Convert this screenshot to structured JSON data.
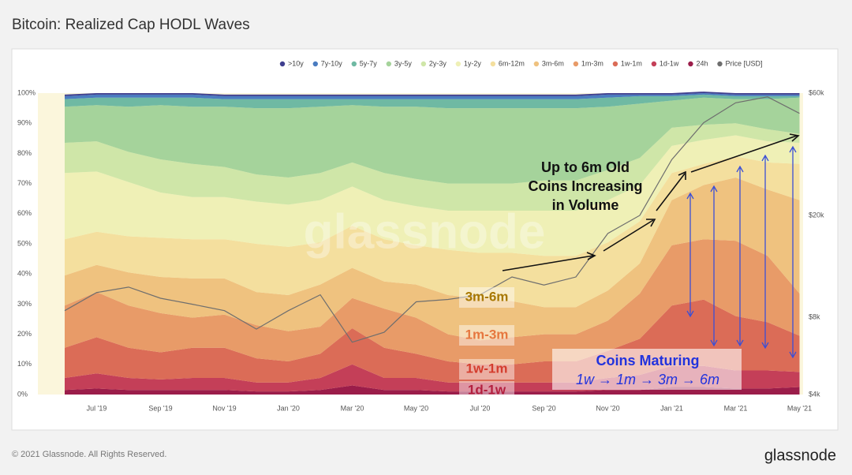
{
  "chart_data": {
    "type": "stacked-area",
    "title": "Bitcoin: Realized Cap HODL Waves",
    "watermark": "glassnode",
    "footer": "© 2021 Glassnode. All Rights Reserved.",
    "logo": "glassnode",
    "categories": [
      null,
      "Jul '19",
      null,
      "Sep '19",
      null,
      "Nov '19",
      null,
      "Jan '20",
      null,
      "Mar '20",
      null,
      "May '20",
      null,
      "Jul '20",
      null,
      "Sep '20",
      null,
      "Nov '20",
      null,
      "Jan '21",
      null,
      "Mar '21",
      null,
      "May '21"
    ],
    "ylim": [
      0,
      100
    ],
    "yticks": [
      {
        "value": 0,
        "label": "0%"
      },
      {
        "value": 10,
        "label": "10%"
      },
      {
        "value": 20,
        "label": "20%"
      },
      {
        "value": 30,
        "label": "30%"
      },
      {
        "value": 40,
        "label": "40%"
      },
      {
        "value": 50,
        "label": "50%"
      },
      {
        "value": 60,
        "label": "60%"
      },
      {
        "value": 70,
        "label": "70%"
      },
      {
        "value": 80,
        "label": "80%"
      },
      {
        "value": 90,
        "label": "90%"
      },
      {
        "value": 100,
        "label": "100%"
      }
    ],
    "y2lim": [
      4000,
      60000
    ],
    "y2ticks": [
      {
        "value": 4000,
        "label": "$4k"
      },
      {
        "value": 8000,
        "label": "$8k"
      },
      {
        "value": 20000,
        "label": "$20k"
      },
      {
        "value": 60000,
        "label": "$60k"
      }
    ],
    "y2scale": "log",
    "legend": "top-right",
    "series": [
      {
        "name": ">10y",
        "color": "#3f3f8f",
        "values": [
          0.5,
          0.5,
          0.5,
          0.5,
          0.5,
          0.5,
          0.5,
          0.5,
          0.5,
          0.5,
          0.5,
          0.5,
          0.5,
          0.5,
          0.5,
          0.5,
          0.5,
          0.5,
          0.5,
          0.5,
          0.5,
          0.5,
          0.5,
          0.5
        ]
      },
      {
        "name": "7y-10y",
        "color": "#4a7cc0",
        "values": [
          1,
          1,
          1,
          1,
          1,
          1,
          1,
          1,
          1,
          1,
          1,
          1,
          1,
          1,
          1,
          1,
          1,
          1,
          0.5,
          0.5,
          0.5,
          0.5,
          0.5,
          0.5
        ]
      },
      {
        "name": "5y-7y",
        "color": "#6fb9a3",
        "values": [
          2.5,
          2.5,
          3,
          2.5,
          3,
          2.5,
          3,
          3,
          2.5,
          2,
          2.5,
          2.5,
          3,
          3,
          3,
          3,
          3,
          3,
          2.5,
          1.5,
          1,
          1,
          1,
          0.5
        ]
      },
      {
        "name": "3y-5y",
        "color": "#a5d39b",
        "values": [
          12,
          12,
          15,
          18,
          19,
          20,
          22,
          23,
          22,
          19,
          22,
          24,
          25,
          25,
          25,
          24,
          24,
          21,
          18,
          9,
          9,
          8,
          10,
          12
        ]
      },
      {
        "name": "2y-3y",
        "color": "#cfe6a8",
        "values": [
          10,
          10,
          10,
          11,
          11,
          10,
          9,
          9,
          9,
          8,
          9,
          9,
          9,
          9,
          9,
          10,
          10,
          10,
          9,
          6,
          5,
          4,
          4,
          3
        ]
      },
      {
        "name": "1y-2y",
        "color": "#eff0b6",
        "values": [
          22,
          20,
          18,
          15,
          14,
          14,
          14,
          14,
          14,
          13,
          13,
          13,
          13,
          14,
          14,
          15,
          15,
          14,
          12,
          9,
          8,
          7,
          7,
          7
        ]
      },
      {
        "name": "6m-12m",
        "color": "#f4df9e",
        "values": [
          12,
          11,
          12,
          13,
          13,
          13,
          16,
          16,
          14,
          14,
          14,
          13,
          15,
          15,
          16,
          17,
          17,
          16,
          14,
          9,
          7,
          7,
          9,
          12
        ]
      },
      {
        "name": "3m-6m",
        "color": "#efc27f",
        "values": [
          10,
          9,
          11,
          12,
          13,
          12,
          11,
          12,
          14,
          10,
          9,
          11,
          13,
          14,
          12,
          9,
          9,
          10,
          10,
          15,
          18,
          21,
          22,
          31
        ]
      },
      {
        "name": "1m-3m",
        "color": "#e89b68",
        "values": [
          14,
          15,
          14,
          13,
          10,
          11,
          11,
          10,
          9,
          10,
          13,
          12,
          9,
          8,
          9,
          9,
          9,
          10,
          15,
          20,
          20,
          25,
          22,
          14
        ]
      },
      {
        "name": "1w-1m",
        "color": "#db6c57",
        "values": [
          10,
          12,
          10,
          9,
          10,
          10,
          8,
          7,
          8,
          12,
          10,
          8,
          7,
          6,
          6,
          7,
          7,
          9,
          12,
          20,
          22,
          18,
          16,
          12
        ]
      },
      {
        "name": "1d-1w",
        "color": "#c43f58",
        "values": [
          4,
          5,
          4,
          3.5,
          4,
          4,
          3,
          3,
          4,
          7,
          4,
          4,
          3,
          3,
          3,
          3,
          3,
          4,
          5,
          7,
          7,
          6,
          6,
          5
        ]
      },
      {
        "name": "24h",
        "color": "#9b1d4a",
        "values": [
          1.5,
          2,
          1.5,
          1.5,
          1.5,
          1.5,
          1,
          1,
          1.5,
          3,
          1.5,
          1.5,
          1,
          1,
          1,
          1,
          1,
          1.5,
          1.5,
          2.5,
          2.5,
          2,
          2,
          2.5
        ]
      },
      {
        "name": "Price [USD]",
        "color": "#6e6e6e",
        "axis": "y2",
        "type": "line",
        "values": [
          8500,
          10000,
          10500,
          9500,
          9000,
          8500,
          7200,
          8500,
          9800,
          6400,
          7000,
          9200,
          9400,
          9800,
          11500,
          10700,
          11500,
          17000,
          20000,
          33000,
          46000,
          55000,
          58000,
          50000
        ]
      }
    ],
    "annotations": [
      "Up to 6m Old",
      "Coins Increasing",
      "in Volume",
      "Coins Maturing",
      "1w → 1m → 3m → 6m",
      "3m-6m",
      "1m-3m",
      "1w-1m",
      "1d-1w"
    ]
  }
}
